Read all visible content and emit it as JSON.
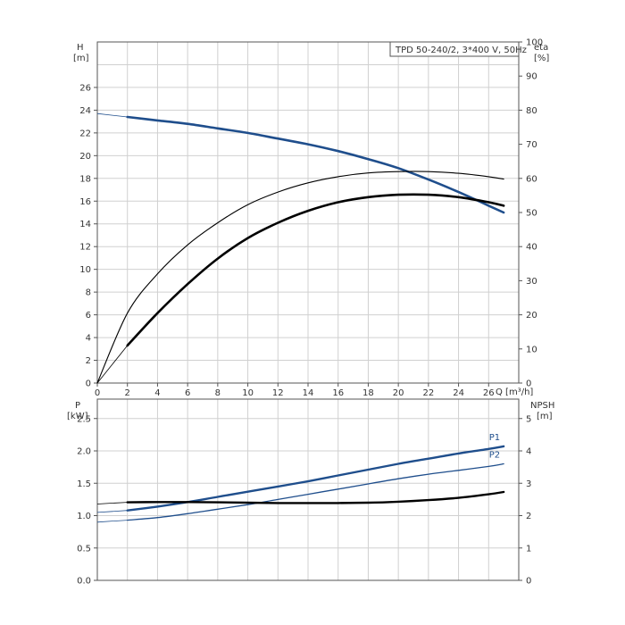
{
  "chart_data": [
    {
      "type": "line",
      "title": "TPD 50-240/2, 3*400 V, 50Hz",
      "xlabel": "Q [m³/h]",
      "left_axis": {
        "label_line1": "H",
        "label_line2": "[m]",
        "ticks": [
          0,
          2,
          4,
          6,
          8,
          10,
          12,
          14,
          16,
          18,
          20,
          22,
          24,
          26
        ],
        "range": [
          0,
          30
        ]
      },
      "right_axis": {
        "label_line1": "eta",
        "label_line2": "[%]",
        "ticks": [
          0,
          10,
          20,
          30,
          40,
          50,
          60,
          70,
          80,
          90,
          100
        ],
        "range": [
          0,
          100
        ]
      },
      "xlim": [
        0,
        28
      ],
      "xticks": [
        0,
        2,
        4,
        6,
        8,
        10,
        12,
        14,
        16,
        18,
        20,
        22,
        24,
        26
      ],
      "grid": true,
      "series": [
        {
          "id": "H",
          "axis": "left",
          "color": "#1f4e8c",
          "thin_extension": [
            [
              0,
              23.7
            ],
            [
              2,
              23.4
            ]
          ],
          "points": [
            [
              2,
              23.4
            ],
            [
              4,
              23.1
            ],
            [
              6,
              22.8
            ],
            [
              8,
              22.4
            ],
            [
              10,
              22.0
            ],
            [
              12,
              21.5
            ],
            [
              14,
              21.0
            ],
            [
              16,
              20.4
            ],
            [
              18,
              19.7
            ],
            [
              20,
              18.9
            ],
            [
              22,
              17.9
            ],
            [
              24,
              16.8
            ],
            [
              26,
              15.6
            ],
            [
              27,
              15.0
            ]
          ]
        },
        {
          "id": "eta-thin",
          "axis": "right",
          "color": "#000000",
          "points": [
            [
              0,
              0
            ],
            [
              2,
              20.5
            ],
            [
              4,
              32
            ],
            [
              6,
              40.5
            ],
            [
              8,
              47
            ],
            [
              10,
              52.3
            ],
            [
              12,
              56
            ],
            [
              14,
              58.7
            ],
            [
              16,
              60.5
            ],
            [
              18,
              61.6
            ],
            [
              20,
              62
            ],
            [
              22,
              62
            ],
            [
              24,
              61.5
            ],
            [
              26,
              60.5
            ],
            [
              27,
              59.8
            ]
          ]
        },
        {
          "id": "eta-thick",
          "axis": "right",
          "color": "#000000",
          "thin_extension": [
            [
              0,
              0
            ],
            [
              2,
              11
            ]
          ],
          "points": [
            [
              2,
              11
            ],
            [
              4,
              20.5
            ],
            [
              6,
              29
            ],
            [
              8,
              36.5
            ],
            [
              10,
              42.5
            ],
            [
              12,
              47
            ],
            [
              14,
              50.5
            ],
            [
              16,
              53
            ],
            [
              18,
              54.5
            ],
            [
              20,
              55.2
            ],
            [
              22,
              55.2
            ],
            [
              24,
              54.5
            ],
            [
              26,
              53
            ],
            [
              27,
              52
            ]
          ]
        }
      ]
    },
    {
      "type": "line",
      "left_axis": {
        "label_line1": "P",
        "label_line2": "[kW]",
        "ticks": [
          "0.0",
          "0.5",
          "1.0",
          "1.5",
          "2.0",
          "2.5"
        ],
        "range": [
          0,
          2.8
        ]
      },
      "right_axis": {
        "label_line1": "NPSH",
        "label_line2": "[m]",
        "ticks": [
          0,
          1,
          2,
          3,
          4,
          5
        ],
        "range": [
          0,
          5.6
        ]
      },
      "xlim": [
        0,
        28
      ],
      "grid": true,
      "series": [
        {
          "id": "P1",
          "name": "P1",
          "axis": "left",
          "color": "#1f4e8c",
          "thin_extension": [
            [
              0,
              1.05
            ],
            [
              2,
              1.08
            ]
          ],
          "points": [
            [
              2,
              1.08
            ],
            [
              4,
              1.14
            ],
            [
              6,
              1.21
            ],
            [
              8,
              1.29
            ],
            [
              10,
              1.37
            ],
            [
              12,
              1.45
            ],
            [
              14,
              1.53
            ],
            [
              16,
              1.62
            ],
            [
              18,
              1.71
            ],
            [
              20,
              1.8
            ],
            [
              22,
              1.88
            ],
            [
              24,
              1.96
            ],
            [
              26,
              2.03
            ],
            [
              27,
              2.07
            ]
          ]
        },
        {
          "id": "P2",
          "name": "P2",
          "axis": "left",
          "color": "#1f4e8c",
          "thin_extension": [
            [
              0,
              0.9
            ],
            [
              2,
              0.93
            ]
          ],
          "points": [
            [
              2,
              0.93
            ],
            [
              4,
              0.97
            ],
            [
              6,
              1.03
            ],
            [
              8,
              1.1
            ],
            [
              10,
              1.17
            ],
            [
              12,
              1.25
            ],
            [
              14,
              1.33
            ],
            [
              16,
              1.41
            ],
            [
              18,
              1.49
            ],
            [
              20,
              1.57
            ],
            [
              22,
              1.64
            ],
            [
              24,
              1.7
            ],
            [
              26,
              1.76
            ],
            [
              27,
              1.8
            ]
          ]
        },
        {
          "id": "NPSH",
          "axis": "right",
          "color": "#000000",
          "thin_extension": [
            [
              0,
              2.36
            ],
            [
              2,
              2.41
            ]
          ],
          "points": [
            [
              2,
              2.41
            ],
            [
              4,
              2.42
            ],
            [
              6,
              2.42
            ],
            [
              8,
              2.41
            ],
            [
              10,
              2.4
            ],
            [
              12,
              2.39
            ],
            [
              14,
              2.39
            ],
            [
              16,
              2.39
            ],
            [
              18,
              2.4
            ],
            [
              20,
              2.43
            ],
            [
              22,
              2.48
            ],
            [
              24,
              2.55
            ],
            [
              26,
              2.66
            ],
            [
              27,
              2.73
            ]
          ]
        }
      ]
    }
  ]
}
